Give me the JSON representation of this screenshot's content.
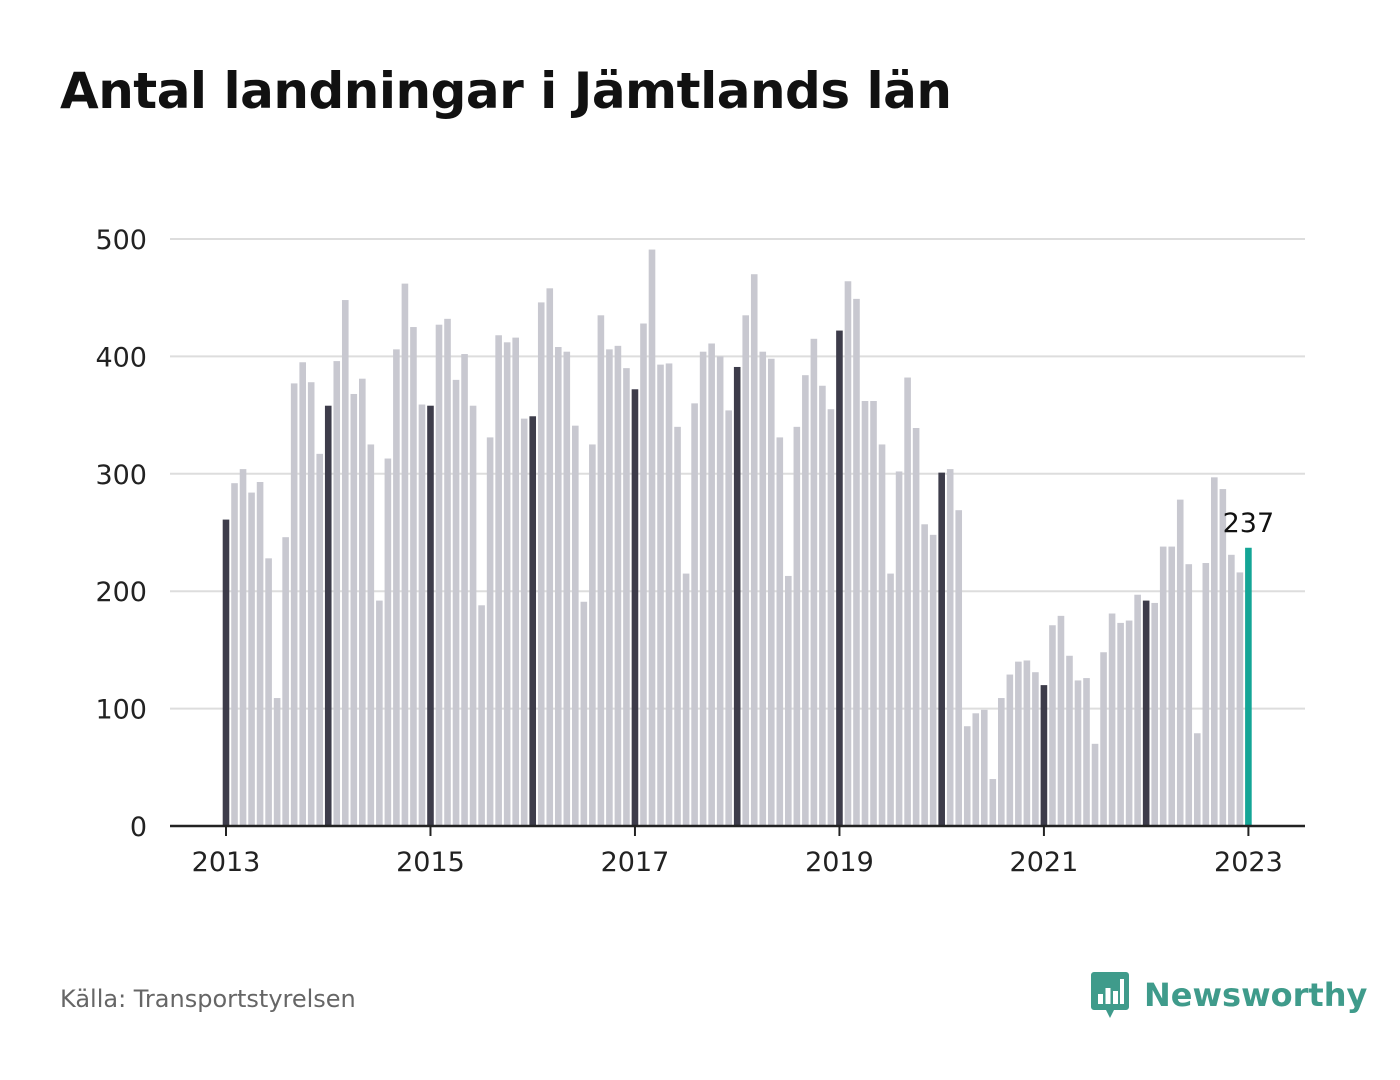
{
  "title": "Antal landningar i Jämtlands län",
  "source": "Källa: Transportstyrelsen",
  "brand": {
    "name": "Newsworthy",
    "icon": "newsworthy-logo-icon",
    "color": "#3f9b8b"
  },
  "colors": {
    "bar": "#c8c8d0",
    "january": "#3d3c4a",
    "latest": "#14a596",
    "grid": "#dddddd",
    "axis": "#222222"
  },
  "chart_data": {
    "type": "bar",
    "start": "2013-01",
    "x_ticks": [
      "2013",
      "2015",
      "2017",
      "2019",
      "2021",
      "2023"
    ],
    "y_ticks": [
      0,
      100,
      200,
      300,
      400,
      500
    ],
    "ylim": [
      0,
      500
    ],
    "grid": true,
    "highlight_label": "237",
    "values": [
      261,
      292,
      304,
      284,
      293,
      228,
      109,
      246,
      377,
      395,
      378,
      317,
      358,
      396,
      448,
      368,
      381,
      325,
      192,
      313,
      406,
      462,
      425,
      359,
      358,
      427,
      432,
      380,
      402,
      358,
      188,
      331,
      418,
      412,
      416,
      347,
      349,
      446,
      458,
      408,
      404,
      341,
      191,
      325,
      435,
      406,
      409,
      390,
      372,
      428,
      491,
      393,
      394,
      340,
      215,
      360,
      404,
      411,
      400,
      354,
      391,
      435,
      470,
      404,
      398,
      331,
      213,
      340,
      384,
      415,
      375,
      355,
      422,
      464,
      449,
      362,
      362,
      325,
      215,
      302,
      382,
      339,
      257,
      248,
      301,
      304,
      269,
      85,
      96,
      99,
      40,
      109,
      129,
      140,
      141,
      131,
      120,
      171,
      179,
      145,
      124,
      126,
      70,
      148,
      181,
      173,
      175,
      197,
      192,
      190,
      238,
      238,
      278,
      223,
      79,
      224,
      297,
      287,
      231,
      216,
      237
    ]
  }
}
